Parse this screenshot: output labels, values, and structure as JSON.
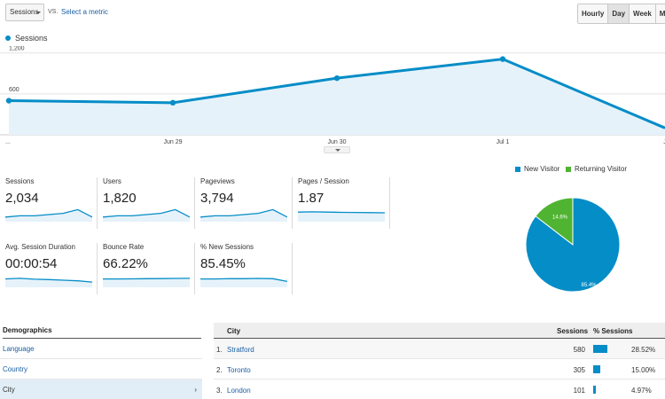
{
  "controls": {
    "metric_select": "Sessions",
    "vs_label": "VS.",
    "select_metric": "Select a metric",
    "time_tabs": [
      "Hourly",
      "Day",
      "Week",
      "Month"
    ],
    "active_tab": "Day"
  },
  "chart_data": {
    "type": "area",
    "series": [
      {
        "name": "Sessions",
        "values": [
          500,
          470,
          830,
          1110,
          100
        ]
      }
    ],
    "x": [
      "...",
      "Jun 29",
      "Jun 30",
      "Jul 1",
      "J"
    ],
    "y_ticks": [
      "1,200",
      "600"
    ],
    "ylim": [
      0,
      1300
    ],
    "color": "#058dc7"
  },
  "scorecards": [
    {
      "label": "Sessions",
      "value": "2,034",
      "spark": [
        3,
        4,
        4,
        5,
        6,
        9,
        3
      ]
    },
    {
      "label": "Users",
      "value": "1,820",
      "spark": [
        3,
        4,
        4,
        5,
        6,
        9,
        3
      ]
    },
    {
      "label": "Pageviews",
      "value": "3,794",
      "spark": [
        3,
        4,
        4,
        5,
        6,
        9,
        3
      ]
    },
    {
      "label": "Pages / Session",
      "value": "1.87",
      "spark": [
        7,
        7.2,
        7,
        6.8,
        6.7,
        6.6,
        6.4
      ]
    },
    {
      "label": "Avg. Session Duration",
      "value": "00:00:54",
      "spark": [
        6,
        6.5,
        5.8,
        5.5,
        5,
        4.5,
        3.5
      ]
    },
    {
      "label": "Bounce Rate",
      "value": "66.22%",
      "spark": [
        6,
        6,
        6.1,
        6.2,
        6.3,
        6.4,
        6.5
      ]
    },
    {
      "label": "% New Sessions",
      "value": "85.45%",
      "spark": [
        6,
        6,
        6.2,
        6.2,
        6.4,
        6.2,
        4
      ]
    }
  ],
  "pie": {
    "legend": [
      {
        "label": "New Visitor",
        "color": "#058dc7"
      },
      {
        "label": "Returning Visitor",
        "color": "#50b432"
      }
    ],
    "values": [
      85.4,
      14.6
    ],
    "labels": [
      "85.4%",
      "14.6%"
    ]
  },
  "demographics": {
    "title": "Demographics",
    "items": [
      "Language",
      "Country",
      "City"
    ],
    "selected": "City",
    "arrow": "›"
  },
  "city_table": {
    "headers": {
      "city": "City",
      "sessions": "Sessions",
      "pct": "% Sessions"
    },
    "rows": [
      {
        "index": "1.",
        "city": "Stratford",
        "sessions": "580",
        "pct": "28.52%",
        "share": 28.52
      },
      {
        "index": "2.",
        "city": "Toronto",
        "sessions": "305",
        "pct": "15.00%",
        "share": 15.0
      },
      {
        "index": "3.",
        "city": "London",
        "sessions": "101",
        "pct": "4.97%",
        "share": 4.97
      }
    ]
  }
}
